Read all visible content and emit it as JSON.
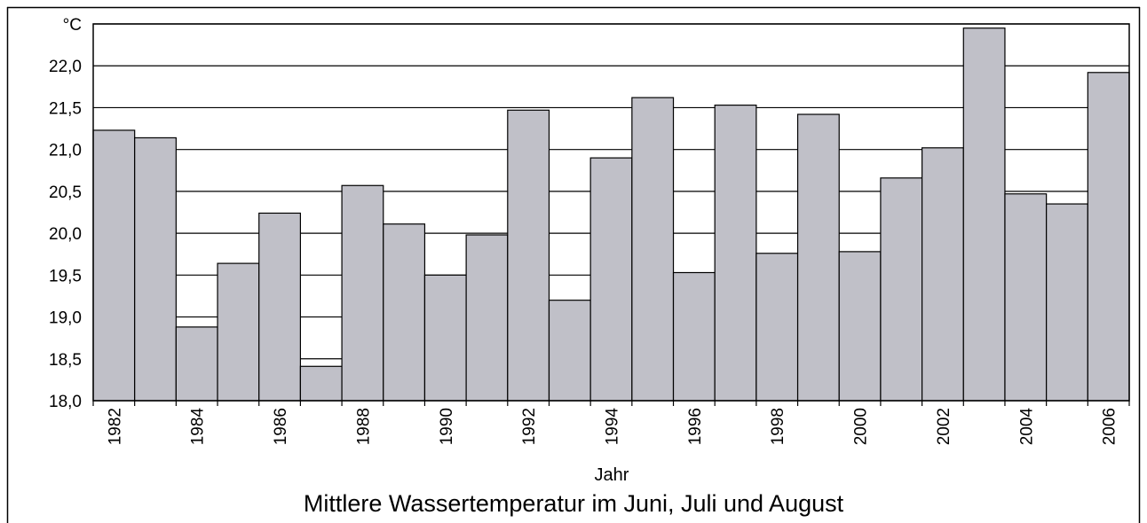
{
  "chart_data": {
    "type": "bar",
    "title": "Mittlere Wassertemperatur im Juni, Juli und August",
    "x_label": "Jahr",
    "categories": [
      "1982",
      null,
      "1984",
      null,
      "1986",
      null,
      "1988",
      null,
      "1990",
      null,
      "1992",
      null,
      "1994",
      null,
      "1996",
      null,
      "1998",
      null,
      "2000",
      null,
      "2002",
      null,
      "2004",
      null,
      "2006"
    ],
    "values": [
      21.23,
      21.14,
      18.88,
      19.64,
      20.24,
      18.41,
      20.57,
      20.11,
      19.5,
      19.98,
      21.47,
      19.2,
      20.9,
      21.62,
      19.53,
      21.53,
      19.76,
      21.42,
      19.78,
      20.66,
      21.02,
      22.45,
      20.47,
      20.35,
      21.92
    ],
    "color": "#c0c0c8",
    "ylim": [
      18,
      22.5
    ],
    "yticks": [
      {
        "value": 18,
        "label": "18,0"
      },
      {
        "value": 18.5,
        "label": "18,5"
      },
      {
        "value": 19,
        "label": "19,0"
      },
      {
        "value": 19.5,
        "label": "19,5"
      },
      {
        "value": 20,
        "label": "20,0"
      },
      {
        "value": 20.5,
        "label": "20,5"
      },
      {
        "value": 21,
        "label": "21,0"
      },
      {
        "value": 21.5,
        "label": "21,5"
      },
      {
        "value": 22,
        "label": "22,0"
      },
      {
        "value": 22.5,
        "label": "°C"
      }
    ],
    "grid": true
  }
}
